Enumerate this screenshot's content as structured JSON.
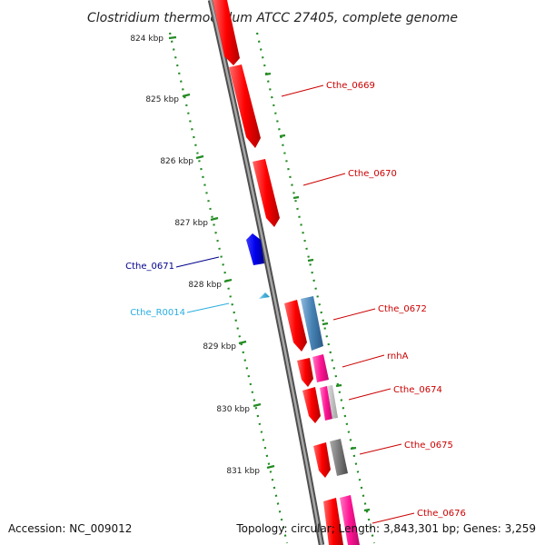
{
  "title": "Clostridium thermocellum ATCC 27405, complete genome",
  "footer": {
    "accession": "Accession: NC_009012",
    "topology": "Topology: circular; Length: 3,843,301 bp; Genes: 3,259"
  },
  "scale_labels": [
    "824 kbp",
    "825 kbp",
    "826 kbp",
    "827 kbp",
    "828 kbp",
    "829 kbp",
    "830 kbp",
    "831 kbp"
  ],
  "gene_labels": [
    {
      "name": "Cthe_0669",
      "color": "#cc0000"
    },
    {
      "name": "Cthe_0670",
      "color": "#cc0000"
    },
    {
      "name": "Cthe_0671",
      "color": "#00008b"
    },
    {
      "name": "Cthe_R0014",
      "color": "#29aee0"
    },
    {
      "name": "Cthe_0672",
      "color": "#cc0000"
    },
    {
      "name": "rnhA",
      "color": "#cc0000"
    },
    {
      "name": "Cthe_0674",
      "color": "#cc0000"
    },
    {
      "name": "Cthe_0675",
      "color": "#cc0000"
    },
    {
      "name": "Cthe_0676",
      "color": "#cc0000"
    }
  ],
  "colors": {
    "cds": "#ff0000",
    "rrna": "#29aee0",
    "forward_cds": "#0000ee",
    "blue_feature": "#4682b4",
    "pink_feature": "#ff1493",
    "grey_feature": "#808080",
    "backbone": "#777777",
    "ruler": "#228b22"
  }
}
